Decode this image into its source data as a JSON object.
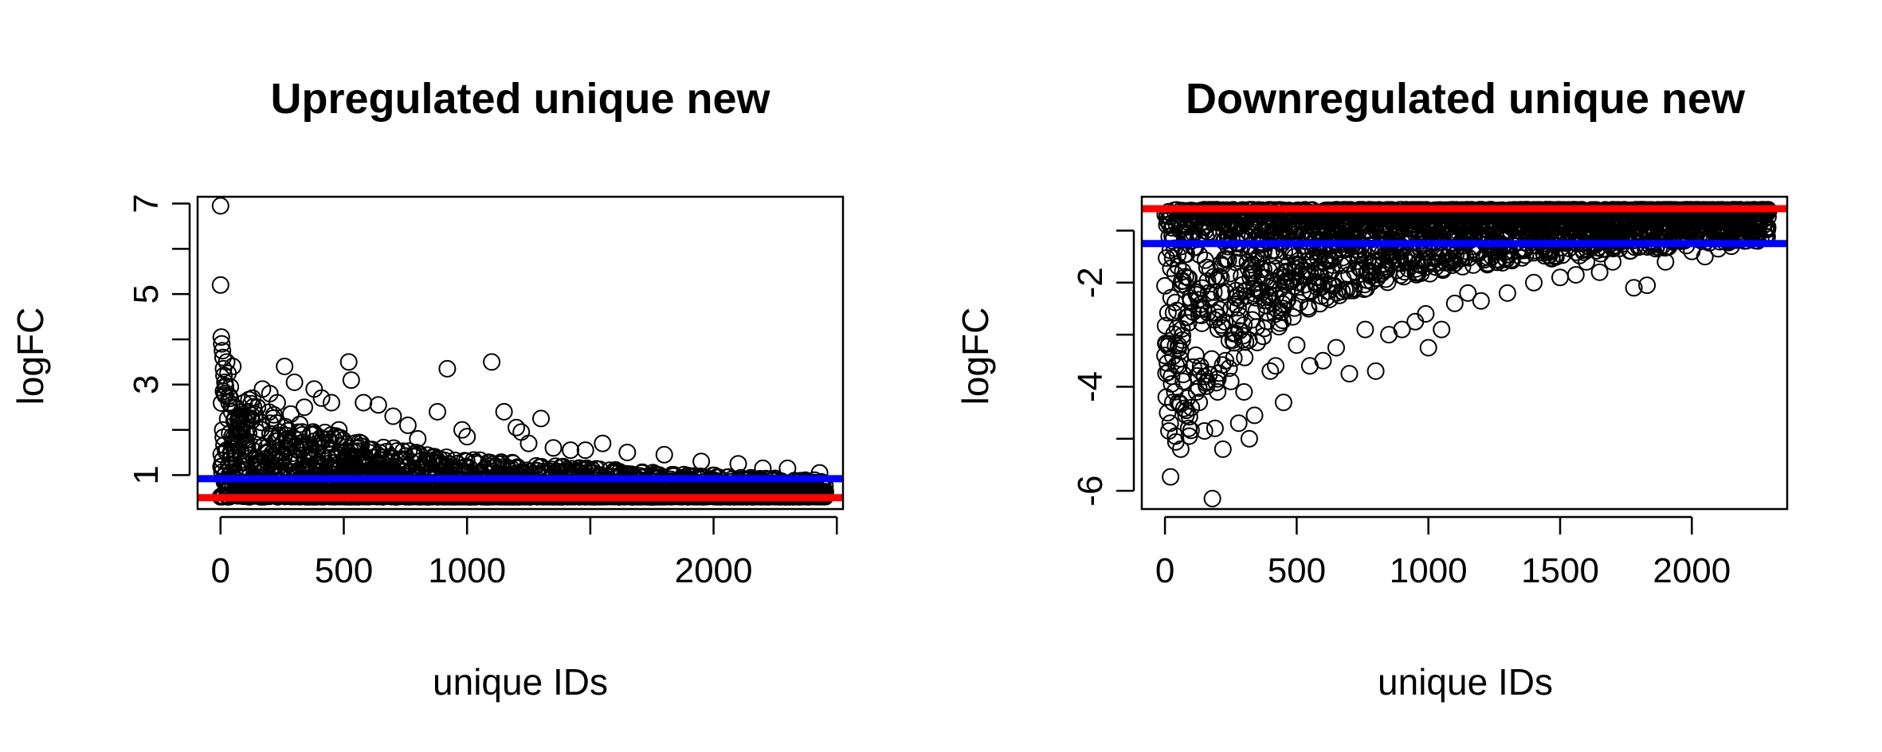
{
  "chart_data": [
    {
      "type": "scatter",
      "title": "Upregulated unique new",
      "xlabel": "unique IDs",
      "ylabel": "logFC",
      "xlim": [
        -93,
        2525
      ],
      "ylim": [
        0.25,
        7.15
      ],
      "x_ticks": [
        0,
        500,
        1000,
        1500,
        2000,
        2500
      ],
      "x_tick_labels": [
        "0",
        "500",
        "1000",
        "",
        "2000",
        ""
      ],
      "y_ticks": [
        1,
        2,
        3,
        4,
        5,
        6,
        7
      ],
      "y_tick_labels": [
        "1",
        "",
        "3",
        "",
        "5",
        "",
        "7"
      ],
      "hlines": [
        {
          "y": 0.92,
          "color": "#0000ff"
        },
        {
          "y": 0.5,
          "color": "#ff0000"
        }
      ],
      "grid": false,
      "n_points": 2470,
      "trend": {
        "min_logFC": 0.5,
        "decay_scale_ids": 420,
        "front_amplitude": 1.8,
        "front_floor": 1.05
      },
      "series": [
        {
          "name": "",
          "x": [
            0,
            0,
            3,
            5,
            8,
            10,
            12,
            14,
            18,
            20,
            25,
            30,
            35,
            40,
            45,
            50,
            55,
            60,
            65,
            75,
            85,
            95,
            110,
            130,
            150,
            170,
            200,
            230,
            260,
            285,
            300,
            340,
            380,
            410,
            450,
            480,
            520,
            530,
            580,
            640,
            700,
            760,
            800,
            880,
            920,
            980,
            1000,
            1100,
            1150,
            1200,
            1220,
            1250,
            1300,
            1350,
            1420,
            1480,
            1550,
            1650,
            1800,
            1950,
            2100,
            2200,
            2300,
            2430
          ],
          "y": [
            6.95,
            5.2,
            4.05,
            3.9,
            3.75,
            3.6,
            3.35,
            3.2,
            3.05,
            2.95,
            3.5,
            3.25,
            2.6,
            2.95,
            2.4,
            3.4,
            2.2,
            2.5,
            2.0,
            2.3,
            2.15,
            2.6,
            2.4,
            2.7,
            2.5,
            2.9,
            2.8,
            2.6,
            3.4,
            2.35,
            3.05,
            2.5,
            2.9,
            2.7,
            2.6,
            2.0,
            3.5,
            3.1,
            2.6,
            2.55,
            2.3,
            2.1,
            1.8,
            2.4,
            3.35,
            2.0,
            1.85,
            3.5,
            2.4,
            2.05,
            1.95,
            1.7,
            2.25,
            1.6,
            1.55,
            1.55,
            1.7,
            1.5,
            1.45,
            1.3,
            1.25,
            1.15,
            1.15,
            1.05
          ]
        }
      ]
    },
    {
      "type": "scatter",
      "title": "Downregulated unique new",
      "xlabel": "unique IDs",
      "ylabel": "logFC",
      "xlim": [
        -88,
        2362
      ],
      "ylim": [
        -6.35,
        -0.35
      ],
      "x_ticks": [
        0,
        500,
        1000,
        1500,
        2000
      ],
      "x_tick_labels": [
        "0",
        "500",
        "1000",
        "1500",
        "2000"
      ],
      "y_ticks": [
        -6,
        -5,
        -4,
        -3,
        -2,
        -1
      ],
      "y_tick_labels": [
        "-6",
        "",
        "-4",
        "",
        "-2",
        ""
      ],
      "hlines": [
        {
          "y": -0.58,
          "color": "#ff0000"
        },
        {
          "y": -1.25,
          "color": "#0000ff"
        }
      ],
      "grid": false,
      "n_points": 2270,
      "trend": {
        "max_logFC": -0.58,
        "decay_scale_ids": 300,
        "front_amplitude": 4.2,
        "front_floor": 1.6
      },
      "series": [
        {
          "name": "",
          "x": [
            0,
            5,
            10,
            15,
            20,
            25,
            30,
            40,
            50,
            60,
            70,
            80,
            90,
            100,
            120,
            130,
            150,
            160,
            180,
            190,
            200,
            220,
            230,
            250,
            280,
            300,
            320,
            340,
            400,
            420,
            450,
            500,
            550,
            600,
            650,
            700,
            760,
            800,
            850,
            900,
            950,
            990,
            1000,
            1050,
            1100,
            1150,
            1200,
            1300,
            1400,
            1500,
            1560,
            1600,
            1650,
            1700,
            1780,
            1830,
            1900,
            2000,
            2050,
            2100,
            2150,
            2200,
            2250
          ],
          "y": [
            -3.4,
            -4.2,
            -4.5,
            -4.85,
            -4.7,
            -3.8,
            -4.3,
            -4.95,
            -4.3,
            -5.2,
            -3.9,
            -4.55,
            -4.8,
            -4.4,
            -4.1,
            -4.3,
            -4.85,
            -3.9,
            -6.15,
            -4.8,
            -4.1,
            -5.2,
            -3.5,
            -3.9,
            -4.7,
            -4.1,
            -5.0,
            -4.55,
            -3.7,
            -3.6,
            -4.3,
            -3.2,
            -3.6,
            -3.5,
            -3.25,
            -3.75,
            -2.9,
            -3.7,
            -3.0,
            -2.9,
            -2.75,
            -2.6,
            -3.25,
            -2.9,
            -2.4,
            -2.2,
            -2.35,
            -2.2,
            -2.0,
            -1.9,
            -1.85,
            -1.6,
            -1.8,
            -1.6,
            -2.1,
            -2.05,
            -1.6,
            -1.4,
            -1.5,
            -1.35,
            -1.3,
            -1.2,
            -1.2
          ]
        }
      ]
    }
  ]
}
